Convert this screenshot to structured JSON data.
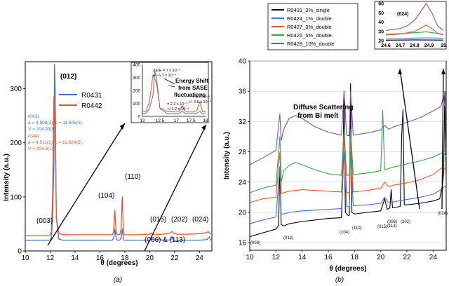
{
  "chart_data": [
    {
      "panel": "a",
      "type": "line",
      "caption": "(a)",
      "xlabel": "θ (degrees)",
      "ylabel": "Intensity (a.u.)",
      "xlim": [
        10,
        25
      ],
      "ylim": [
        0,
        350
      ],
      "xticks": [
        "10",
        "12",
        "14",
        "16",
        "18",
        "20",
        "22",
        "24"
      ],
      "yticks": [
        "0",
        "100",
        "200",
        "300"
      ],
      "legend": [
        "R0431",
        "R0442"
      ],
      "series": [
        {
          "name": "R0431",
          "color": "#4472c4",
          "x": [
            10,
            11,
            12,
            12.1,
            12.2,
            12.3,
            12.35,
            12.4,
            12.5,
            12.7,
            13,
            15,
            17,
            17.1,
            17.2,
            17.3,
            17.4,
            17.6,
            17.7,
            17.8,
            17.9,
            18,
            19,
            20,
            20.1,
            20.2,
            20.3,
            20.5,
            20.7,
            20.8,
            20.9,
            21,
            21.5,
            21.7,
            21.8,
            21.9,
            22.2,
            23,
            24,
            24.6,
            24.7,
            24.8,
            24.9,
            25
          ],
          "y": [
            20,
            20,
            20,
            25,
            60,
            160,
            345,
            300,
            60,
            22,
            20,
            20,
            20,
            24,
            40,
            24,
            20,
            20,
            24,
            40,
            20,
            20,
            20,
            20,
            21,
            22,
            21,
            20,
            21,
            23,
            21,
            20,
            20,
            21,
            26,
            20,
            20,
            20,
            20,
            21,
            24,
            26,
            20,
            20
          ]
        },
        {
          "name": "R0442",
          "color": "#e4572e",
          "x": [
            10,
            11,
            12,
            12.1,
            12.2,
            12.3,
            12.4,
            12.5,
            12.7,
            13,
            15,
            17,
            17.1,
            17.2,
            17.3,
            17.4,
            17.6,
            17.7,
            17.8,
            17.9,
            18,
            19,
            20,
            20.1,
            20.2,
            20.3,
            20.5,
            21,
            21.5,
            21.7,
            21.8,
            21.9,
            22.2,
            23,
            24,
            24.6,
            24.7,
            24.8,
            24.9,
            25
          ],
          "y": [
            28,
            28,
            29,
            35,
            100,
            285,
            230,
            60,
            33,
            30,
            30,
            30,
            36,
            75,
            35,
            30,
            30,
            40,
            100,
            32,
            30,
            30,
            31,
            33,
            31,
            30,
            30,
            31,
            32,
            34,
            36,
            33,
            31,
            31,
            32,
            34,
            36,
            33,
            32,
            31
          ]
        }
      ],
      "peak_labels": [
        "(003)",
        "(012)",
        "(104)",
        "(110)",
        "(015)",
        "(202)",
        "(024)",
        "(006) & (113)"
      ],
      "fit_r0431": {
        "label": "r0431",
        "line1": "a = 4.508(1), c = 11.605(3),",
        "line2": "V = 204.33(8)"
      },
      "fit_r0442": {
        "label": "r0442",
        "line1": "a = 4.511(1), c = 11.624(5),",
        "line2": "V = 204.9(1)"
      },
      "inset": {
        "xlim": [
          12,
          18
        ],
        "ylim": [
          0,
          400
        ],
        "xticks": [
          "12",
          "12.5",
          "17",
          "17.5",
          "18"
        ],
        "yticks": [
          "0",
          "100",
          "200",
          "300",
          "400"
        ],
        "annotation_main_1": "ΔE/E = 7 x 10⁻⁴",
        "annotation_main_2": "+/- 6.1 x 10⁻⁴",
        "annotation_shift_1": "Energy Shift",
        "annotation_shift_2": "from SASE",
        "annotation_shift_3": "fluctuations",
        "annotation_104_1": "= 2.2 x 10⁻⁴",
        "annotation_104_2": "+/-1.2 x 10⁻⁴",
        "annotation_110_1": "= 6 x 10⁻⁴",
        "annotation_110_2": "+/- 2.6 x 10⁻⁴"
      }
    },
    {
      "panel": "b",
      "type": "line",
      "caption": "(b)",
      "xlabel": "θ (degrees)",
      "ylabel": "Intensity (a.u.)",
      "xlim": [
        10,
        25
      ],
      "ylim": [
        15,
        40
      ],
      "xticks": [
        "10",
        "12",
        "14",
        "16",
        "18",
        "20",
        "22",
        "24"
      ],
      "yticks": [
        "16",
        "20",
        "24",
        "28",
        "32",
        "36",
        "40"
      ],
      "legend": [
        "R0431_3%_single",
        "R0424_1%_double",
        "R0427_3%_double",
        "R0425_5%_double",
        "R0428_10%_double"
      ],
      "series": [
        {
          "name": "R0431_3%_single",
          "color": "#000000",
          "x": [
            10,
            11,
            12,
            12.2,
            12.3,
            12.4,
            12.6,
            13,
            14,
            15,
            16,
            17,
            17.1,
            17.2,
            17.3,
            17.5,
            17.6,
            17.7,
            17.8,
            18,
            19,
            20,
            20.3,
            20.5,
            20.7,
            20.8,
            20.9,
            21,
            21.5,
            21.6,
            21.7,
            21.8,
            22,
            23,
            24,
            24.5,
            24.7,
            24.8,
            24.9,
            25
          ],
          "y": [
            16.8,
            17.3,
            17.8,
            18.3,
            26,
            18.4,
            18.2,
            18.5,
            18.8,
            19,
            19.2,
            19.3,
            24,
            36,
            20,
            19.6,
            19.6,
            37,
            20,
            19.8,
            20,
            20.2,
            21.8,
            20.4,
            20.6,
            23,
            20.6,
            20.6,
            20.8,
            30,
            33.6,
            21,
            21,
            21.2,
            21.5,
            21.8,
            23.5,
            25,
            36,
            24.5
          ]
        },
        {
          "name": "R0424_1%_double",
          "color": "#4472c4",
          "x": [
            10,
            11,
            12,
            12.3,
            12.4,
            12.6,
            13,
            14,
            15,
            16,
            17,
            17.2,
            17.4,
            17.6,
            17.7,
            17.9,
            19,
            20,
            20.3,
            20.6,
            21,
            22,
            23,
            24,
            24.6,
            24.8,
            25
          ],
          "y": [
            18.5,
            19,
            19.4,
            26,
            19.8,
            19.8,
            20,
            20.2,
            20.3,
            20.4,
            20.5,
            28,
            20.7,
            20.8,
            28,
            20.9,
            21,
            21.2,
            22,
            21.3,
            21.4,
            21.7,
            22,
            22.4,
            23,
            23.3,
            23.5
          ]
        },
        {
          "name": "R0427_3%_double",
          "color": "#e4572e",
          "x": [
            10,
            11,
            12,
            12.3,
            12.4,
            12.6,
            13,
            14,
            15,
            16,
            17,
            17.2,
            17.4,
            17.6,
            17.7,
            17.9,
            19,
            20,
            20.3,
            20.6,
            21,
            22,
            23,
            24,
            24.6,
            24.8,
            25
          ],
          "y": [
            21.3,
            21.8,
            22,
            28,
            22.5,
            22.6,
            22.8,
            23,
            22.9,
            22.8,
            22.7,
            30,
            22.6,
            22.6,
            30,
            22.7,
            22.9,
            23.2,
            24,
            23.4,
            23.6,
            23.9,
            24.3,
            25,
            25.8,
            26,
            25.5
          ]
        },
        {
          "name": "R0425_5%_double",
          "color": "#3aa348",
          "x": [
            10,
            11,
            12,
            12.3,
            12.4,
            12.6,
            13,
            13.5,
            14,
            15,
            16,
            17,
            17.2,
            17.4,
            17.6,
            17.7,
            17.9,
            19,
            20,
            20.15,
            20.3,
            20.6,
            21,
            22,
            23,
            24,
            24.6,
            24.8,
            25
          ],
          "y": [
            22.6,
            23.2,
            23.6,
            30,
            24,
            25.5,
            26.2,
            26.6,
            26.3,
            25.6,
            25.1,
            24.9,
            31,
            24.9,
            24.9,
            31,
            25,
            25.2,
            25.5,
            33.5,
            25.6,
            25.8,
            26,
            26.4,
            26.8,
            27.3,
            27.8,
            28,
            27.4
          ]
        },
        {
          "name": "R0428_10%_double",
          "color": "#8b4ca8",
          "x": [
            10,
            11,
            12,
            12.3,
            12.4,
            12.6,
            13,
            13.5,
            14,
            15,
            16,
            17,
            17.2,
            17.4,
            17.6,
            17.7,
            17.9,
            19,
            20,
            20.3,
            20.6,
            21,
            22,
            23,
            24,
            24.6,
            24.8,
            24.9,
            25
          ],
          "y": [
            26.3,
            27.2,
            28.2,
            33,
            29.5,
            31,
            32.4,
            32.8,
            32.4,
            31.3,
            30.6,
            30.2,
            36,
            30.2,
            30.1,
            36,
            30.2,
            30.5,
            30.9,
            31.5,
            31,
            31.3,
            31.9,
            32.5,
            33.4,
            34,
            35.4,
            34.2,
            33.5
          ]
        }
      ],
      "peak_labels": [
        "(003)",
        "(012)",
        "(104)",
        "(110)",
        "(015)",
        "(006)",
        "(113)",
        "(202)",
        "(024)"
      ],
      "annotation_diffuse_1": "Diffuse Scattering",
      "annotation_diffuse_2": "from Bi melt",
      "inset": {
        "label": "(024)",
        "xlim": [
          24.6,
          25
        ],
        "ylim": [
          20,
          60
        ],
        "xticks": [
          "24.6",
          "24.7",
          "24.8",
          "24.9",
          "25"
        ],
        "yticks": [
          "20",
          "30",
          "40",
          "50",
          "60"
        ],
        "series": [
          {
            "name": "R0428_10%_double",
            "color": "#8b4ca8",
            "x": [
              24.6,
              24.7,
              24.75,
              24.8,
              24.85,
              24.88,
              24.92,
              24.96,
              25
            ],
            "y": [
              31,
              33,
              36,
              42,
              53,
              60,
              50,
              36,
              31
            ]
          },
          {
            "name": "R0427_3%_double",
            "color": "#e4572e",
            "x": [
              24.6,
              24.7,
              24.8,
              24.85,
              24.88,
              24.92,
              24.96,
              25
            ],
            "y": [
              26,
              27,
              30,
              34,
              37,
              33,
              28,
              26
            ]
          },
          {
            "name": "R0425_5%_double",
            "color": "#3aa348",
            "x": [
              24.6,
              24.7,
              24.8,
              24.88,
              24.95,
              25
            ],
            "y": [
              27,
              27.5,
              28.5,
              29.5,
              28,
              27
            ]
          },
          {
            "name": "R0424_1%_double",
            "color": "#4472c4",
            "x": [
              24.6,
              24.7,
              24.8,
              24.9,
              25
            ],
            "y": [
              22,
              22.3,
              22.8,
              23,
              22.6
            ]
          },
          {
            "name": "R0431_3%_single",
            "color": "#000000",
            "x": [
              24.6,
              24.8,
              25
            ],
            "y": [
              20.5,
              20.8,
              20.6
            ]
          }
        ]
      }
    }
  ]
}
